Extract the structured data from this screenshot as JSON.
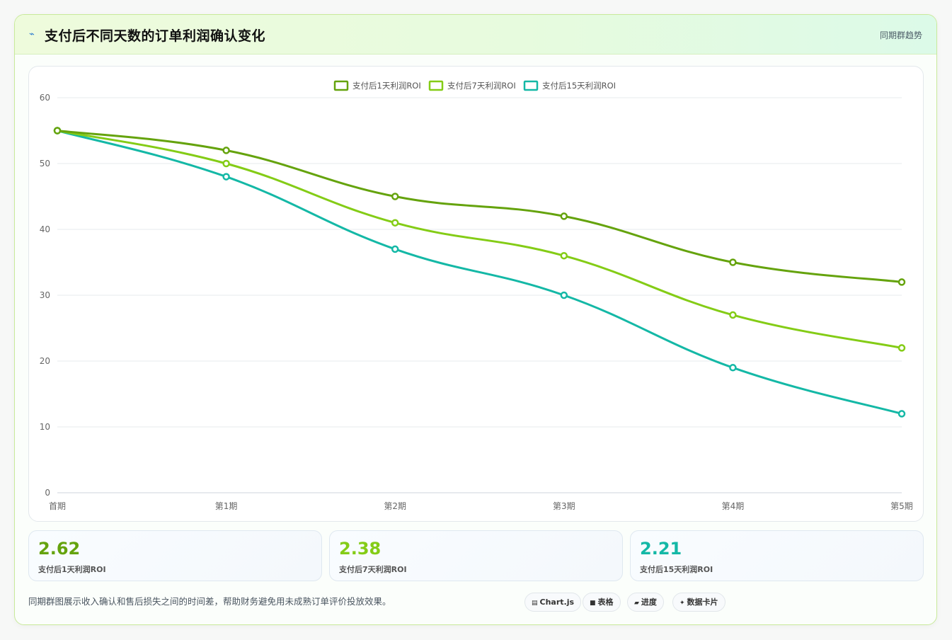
{
  "header": {
    "icon": "lightning-icon",
    "title": "支付后不同天数的订单利润确认变化",
    "tag": "同期群趋势"
  },
  "chart_data": {
    "type": "line",
    "categories": [
      "首期",
      "第1期",
      "第2期",
      "第3期",
      "第4期",
      "第5期"
    ],
    "series": [
      {
        "name": "支付后1天利润ROI",
        "color": "#65a30d",
        "values": [
          55,
          52,
          45,
          42,
          35,
          32
        ]
      },
      {
        "name": "支付后7天利润ROI",
        "color": "#84cc16",
        "values": [
          55,
          50,
          41,
          36,
          27,
          22
        ]
      },
      {
        "name": "支付后15天利润ROI",
        "color": "#14b8a6",
        "values": [
          55,
          48,
          37,
          30,
          19,
          12
        ]
      }
    ],
    "ylim": [
      0,
      60
    ],
    "yticks": [
      0,
      10,
      20,
      30,
      40,
      50,
      60
    ],
    "grid": true,
    "legend": "top-center",
    "title": "",
    "xlabel": "",
    "ylabel": ""
  },
  "stats": [
    {
      "value": "2.62",
      "label": "支付后1天利润ROI",
      "color": "#65a30d"
    },
    {
      "value": "2.38",
      "label": "支付后7天利润ROI",
      "color": "#84cc16"
    },
    {
      "value": "2.21",
      "label": "支付后15天利润ROI",
      "color": "#14b8a6"
    }
  ],
  "footer": {
    "note": "同期群图展示收入确认和售后损失之间的时间差，帮助财务避免用未成熟订单评价投放效果。",
    "pills": [
      {
        "icon": "chart-icon",
        "glyph": "▤",
        "label": "Chart.js"
      },
      {
        "icon": "table-icon",
        "glyph": "■",
        "label": "表格"
      },
      {
        "icon": "progress-icon",
        "glyph": "▰",
        "label": "进度"
      },
      {
        "icon": "card-icon",
        "glyph": "✦",
        "label": "数据卡片"
      }
    ]
  }
}
